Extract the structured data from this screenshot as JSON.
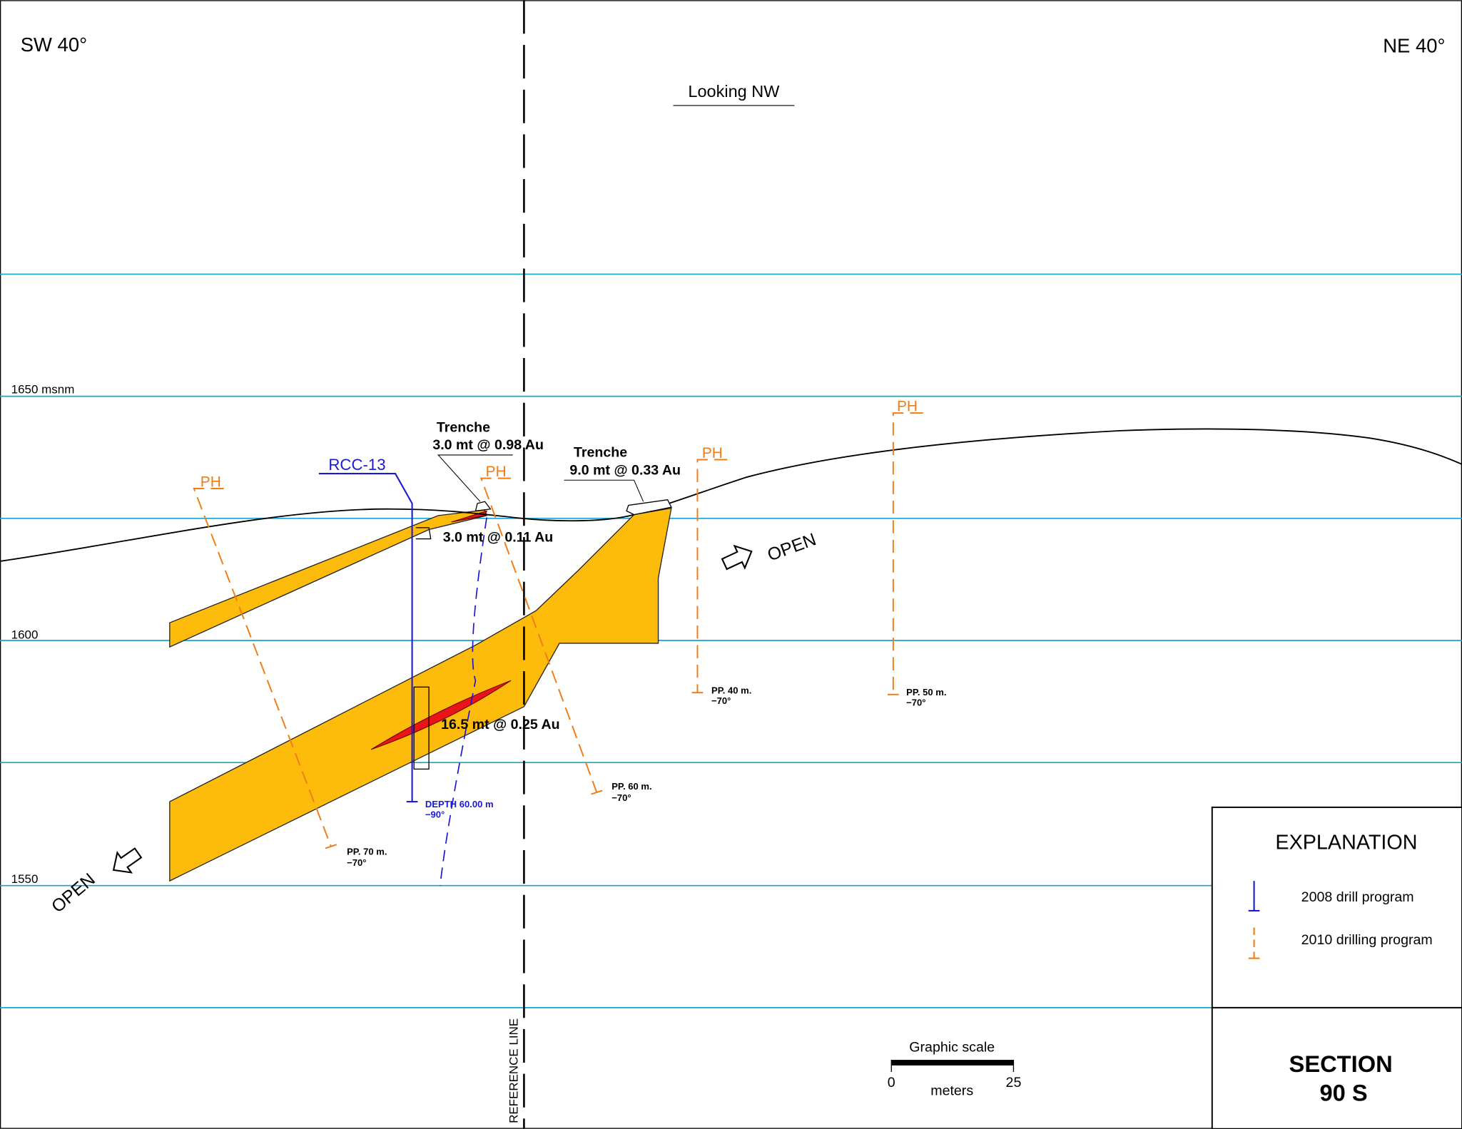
{
  "header": {
    "left_direction": "SW 40°",
    "right_direction": "NE 40°",
    "view": "Looking NW"
  },
  "elevations": [
    "1650 msnm",
    "1600",
    "1550"
  ],
  "reference_line": "REFERENCE LINE",
  "drill_2008": {
    "name": "RCC-13",
    "depth": "DEPTH 60.00 m",
    "dip": "−90°"
  },
  "drill_2010": [
    {
      "label": "PH",
      "length": "PP. 70 m.",
      "dip": "−70°"
    },
    {
      "label": "PH",
      "length": "PP. 60 m.",
      "dip": "−70°"
    },
    {
      "label": "PH",
      "length": "PP. 40 m.",
      "dip": "−70°"
    },
    {
      "label": "PH",
      "length": "PP. 50 m.",
      "dip": "−70°"
    }
  ],
  "intercepts": [
    {
      "title": "Trenche",
      "text": "3.0 mt @ 0.98 Au"
    },
    {
      "title": "Trenche",
      "text": "9.0 mt @ 0.33 Au"
    },
    {
      "text": "3.0 mt @ 0.11 Au"
    },
    {
      "text": "16.5 mt @ 0.25 Au"
    }
  ],
  "open_labels": [
    "OPEN",
    "OPEN"
  ],
  "legend": {
    "title": "EXPLANATION",
    "items": [
      "2008 drill program",
      "2010 drilling program"
    ]
  },
  "scale": {
    "title": "Graphic scale",
    "start": "0",
    "end": "25",
    "unit": "meters"
  },
  "section": {
    "line1": "SECTION",
    "line2": "90 S"
  }
}
